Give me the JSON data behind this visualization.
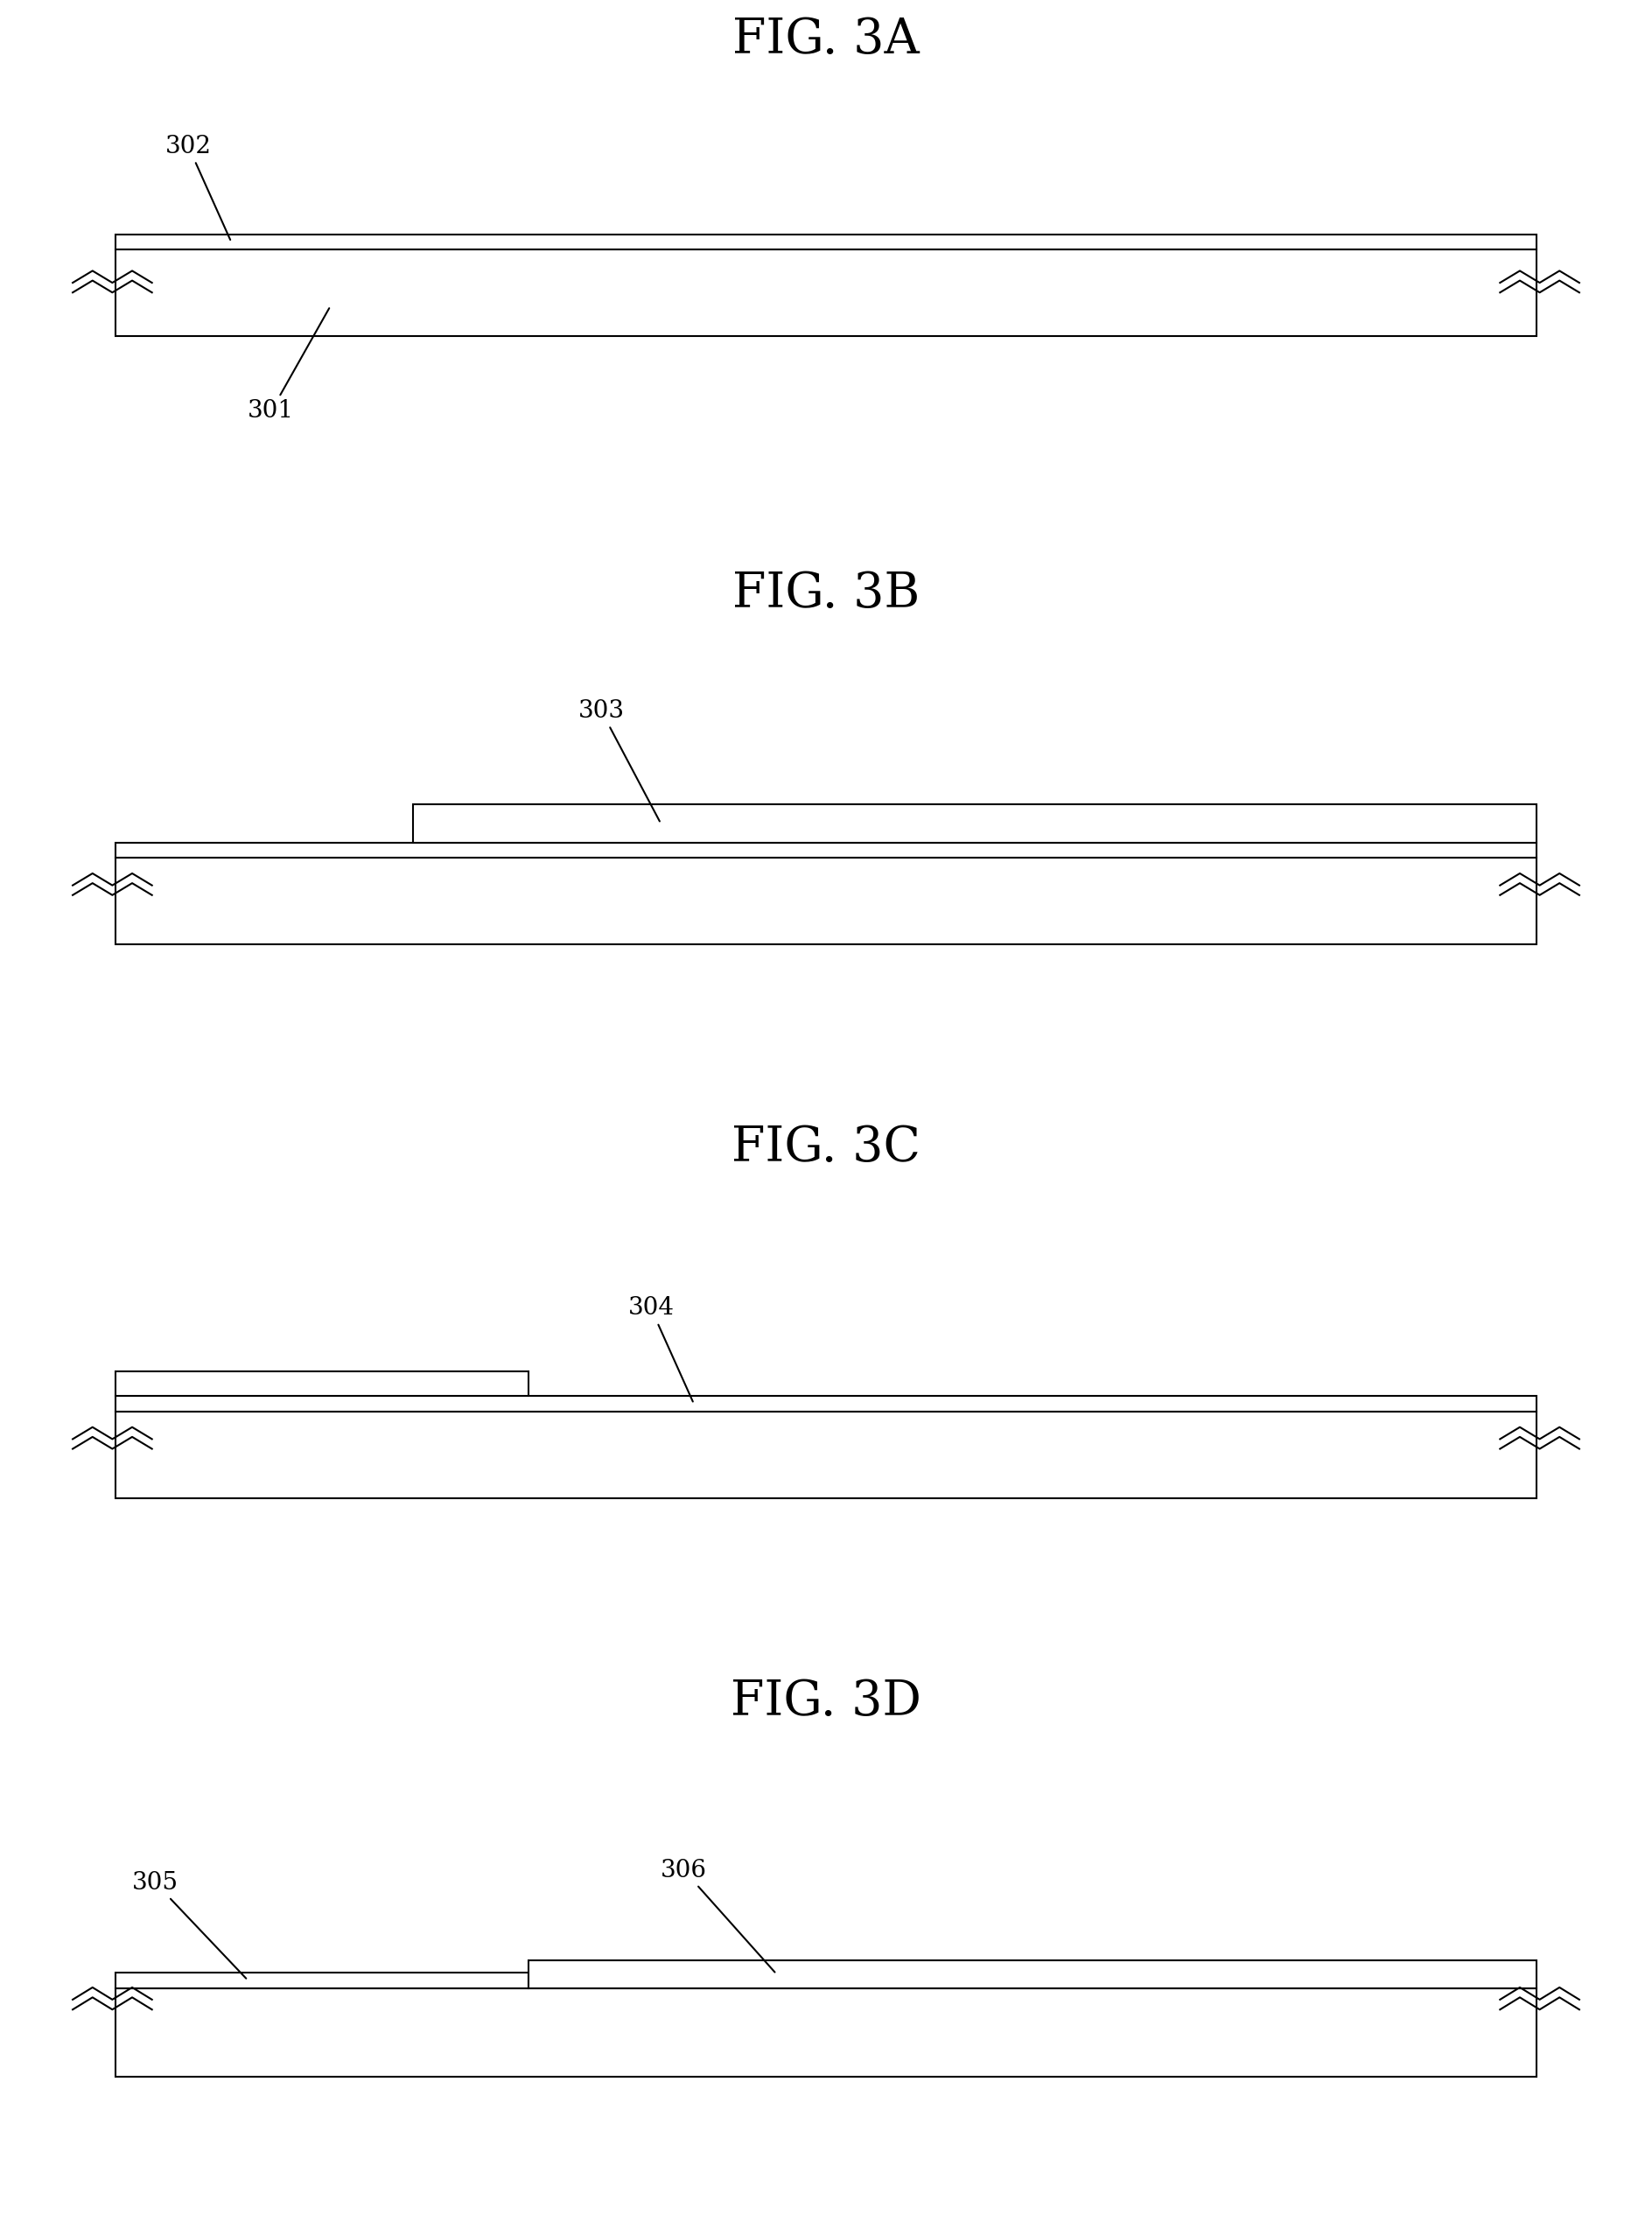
{
  "figures": [
    "FIG. 3A",
    "FIG. 3B",
    "FIG. 3C",
    "FIG. 3D"
  ],
  "bg_color": "#ffffff",
  "line_color": "#000000",
  "title_fontsize": 40,
  "label_fontsize": 20,
  "fig_width": 18.88,
  "fig_height": 25.31
}
